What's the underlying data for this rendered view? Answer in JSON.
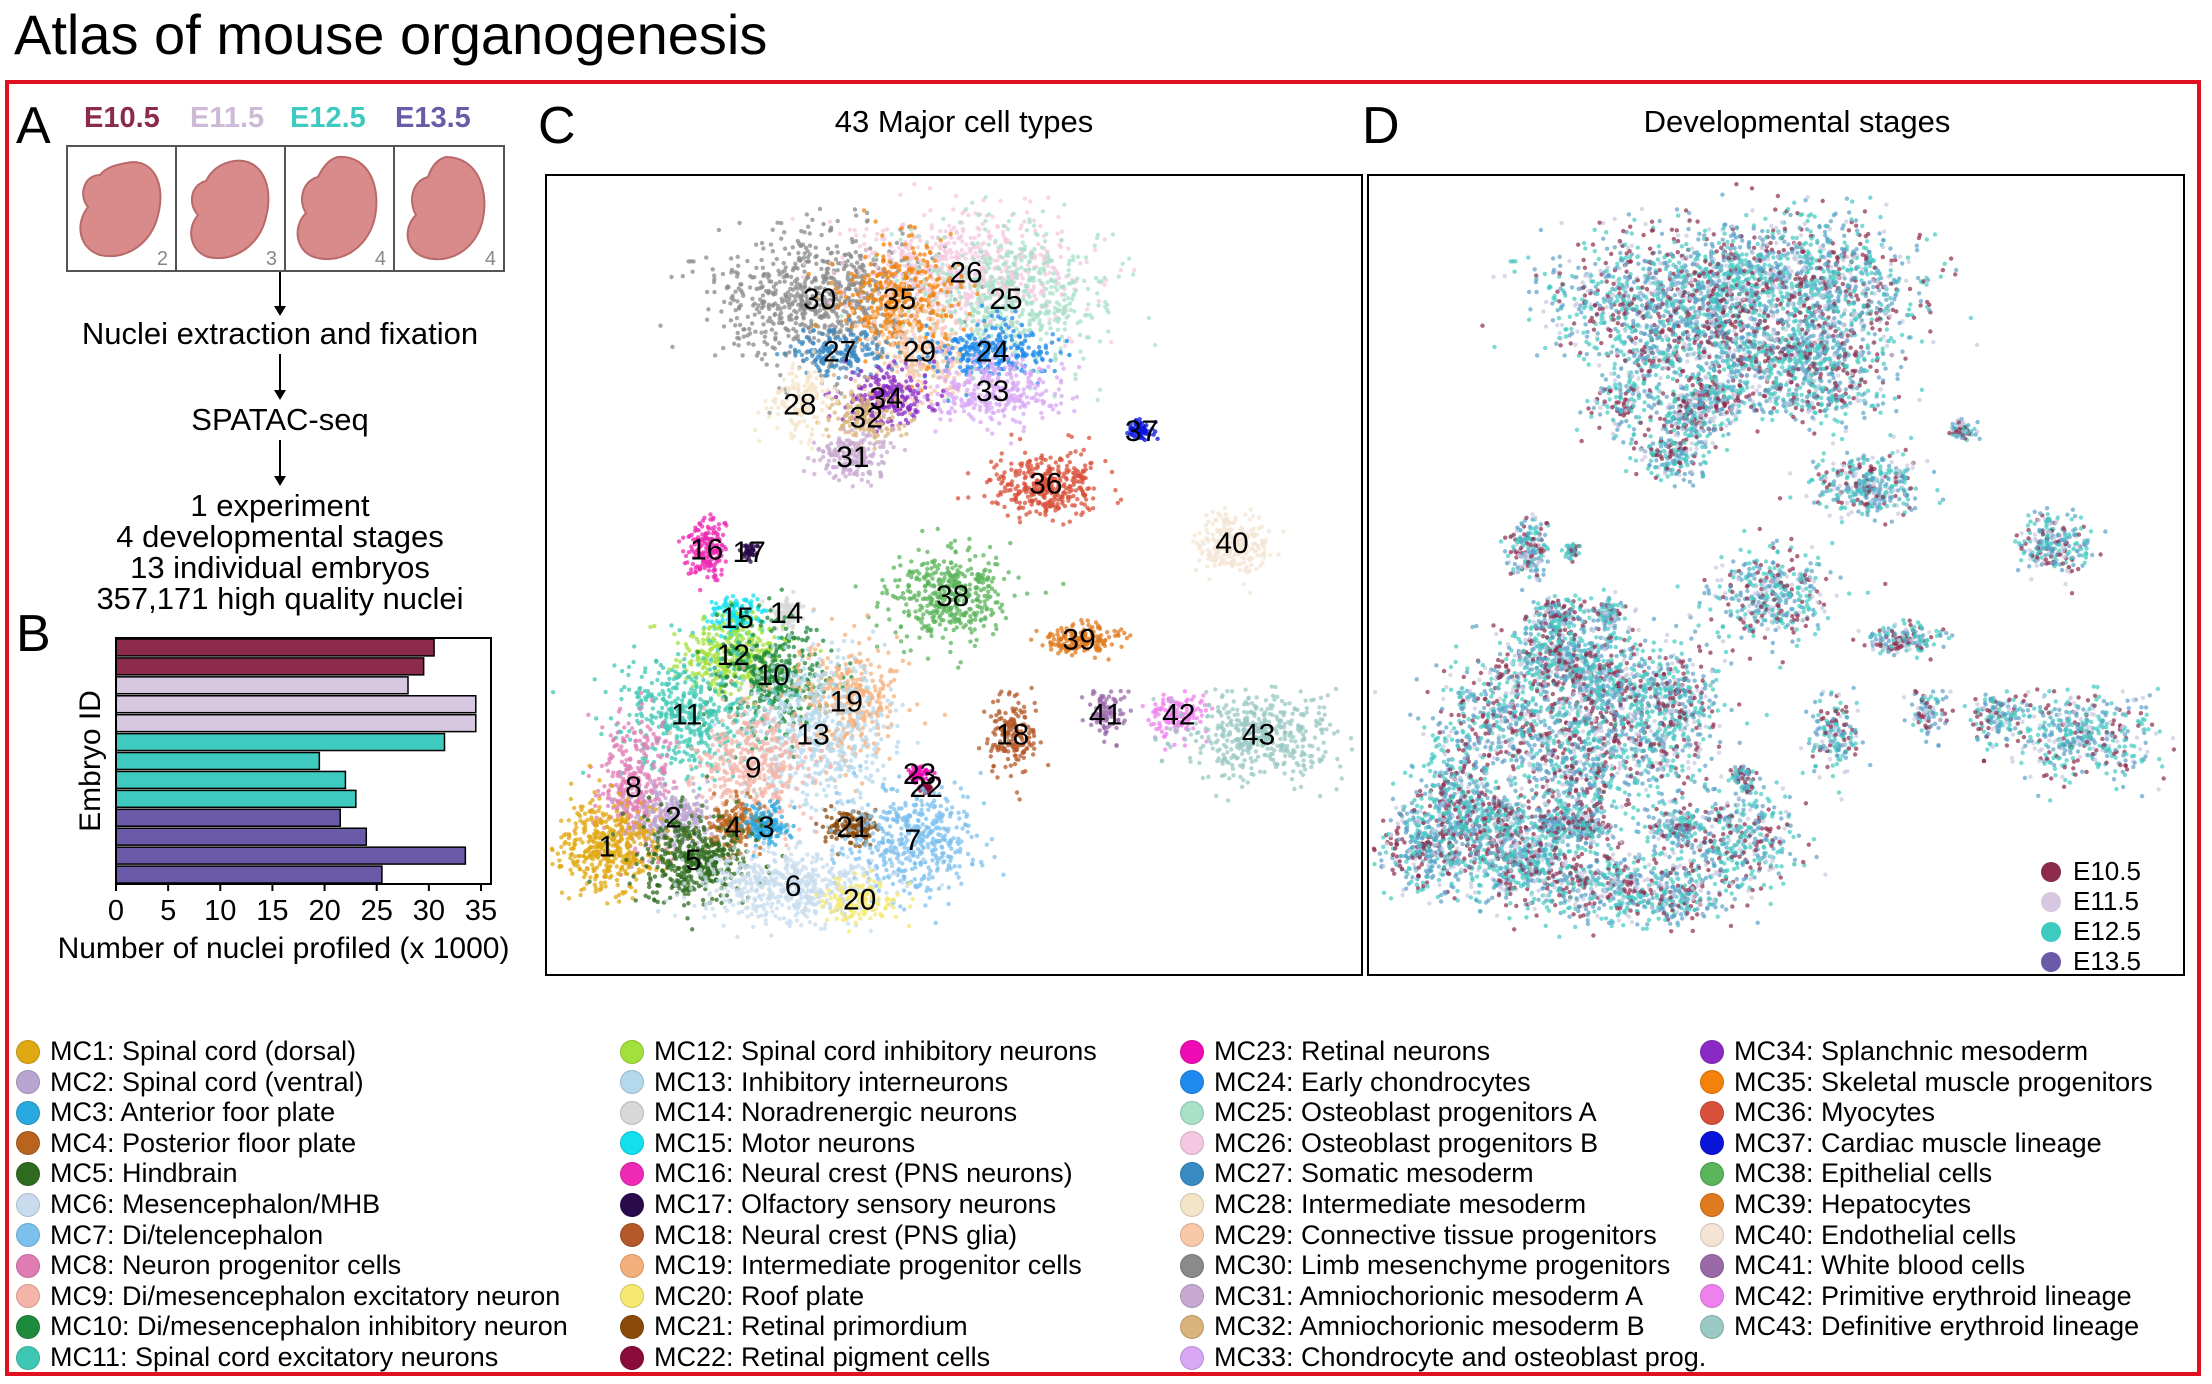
{
  "title": "Atlas of mouse organogenesis",
  "panels": {
    "A": "A",
    "B": "B",
    "C": "C",
    "D": "D"
  },
  "panel_a": {
    "stages": [
      {
        "label": "E10.5",
        "color": "#8b2a4a",
        "count": "2"
      },
      {
        "label": "E11.5",
        "color": "#cdbad6",
        "count": "3"
      },
      {
        "label": "E12.5",
        "color": "#3fcac0",
        "count": "4"
      },
      {
        "label": "E13.5",
        "color": "#6a5aa8",
        "count": "4"
      }
    ],
    "steps": [
      "Nuclei extraction and fixation",
      "SPATAC-seq"
    ],
    "summary": [
      "1 experiment",
      "4 developmental stages",
      "13 individual embryos",
      "357,171 high quality nuclei"
    ]
  },
  "chart_data": {
    "type": "bar",
    "orientation": "horizontal",
    "ylabel": "Embryo ID",
    "xlabel": "Number of nuclei profiled (x 1000)",
    "xlim": [
      0,
      35
    ],
    "xticks": [
      "0",
      "5",
      "10",
      "15",
      "20",
      "25",
      "30",
      "35"
    ],
    "series": [
      {
        "stage": "E10.5",
        "color": "#8b2a4a",
        "values": [
          30.5,
          29.5
        ]
      },
      {
        "stage": "E11.5",
        "color": "#d8c7e0",
        "values": [
          28,
          34.5,
          34.5
        ]
      },
      {
        "stage": "E12.5",
        "color": "#3fcac0",
        "values": [
          31.5,
          19.5,
          22,
          23
        ]
      },
      {
        "stage": "E13.5",
        "color": "#6a5aa8",
        "values": [
          21.5,
          24,
          33.5,
          25.5
        ]
      }
    ]
  },
  "panel_c": {
    "title": "43 Major cell types",
    "clusters": [
      "1",
      "2",
      "3",
      "4",
      "5",
      "6",
      "7",
      "8",
      "9",
      "10",
      "11",
      "12",
      "13",
      "14",
      "15",
      "16",
      "17",
      "18",
      "19",
      "20",
      "21",
      "22",
      "23",
      "24",
      "25",
      "26",
      "27",
      "28",
      "29",
      "30",
      "31",
      "32",
      "33",
      "34",
      "35",
      "36",
      "37",
      "38",
      "39",
      "40",
      "41",
      "42",
      "43"
    ]
  },
  "panel_d": {
    "title": "Developmental stages",
    "legend": [
      {
        "label": "E10.5",
        "color": "#8b2a4a"
      },
      {
        "label": "E11.5",
        "color": "#d8c7e0"
      },
      {
        "label": "E12.5",
        "color": "#3fcac0"
      },
      {
        "label": "E13.5",
        "color": "#6a5aa8"
      }
    ]
  },
  "cell_types": [
    {
      "label": "MC1: Spinal cord (dorsal)",
      "color": "#e0a812"
    },
    {
      "label": "MC2: Spinal cord (ventral)",
      "color": "#b9a6d0"
    },
    {
      "label": "MC3: Anterior foor plate",
      "color": "#2aa8e0"
    },
    {
      "label": "MC4: Posterior floor plate",
      "color": "#b8641e"
    },
    {
      "label": "MC5: Hindbrain",
      "color": "#2e6b1e"
    },
    {
      "label": "MC6: Mesencephalon/MHB",
      "color": "#c8dcee"
    },
    {
      "label": "MC7: Di/telencephalon",
      "color": "#7cc0ee"
    },
    {
      "label": "MC8: Neuron progenitor cells",
      "color": "#e07cb4"
    },
    {
      "label": "MC9: Di/mesencephalon excitatory neuron",
      "color": "#f4b4a8"
    },
    {
      "label": "MC10: Di/mesencephalon inhibitory neuron",
      "color": "#1e8a3c"
    },
    {
      "label": "MC11: Spinal cord excitatory neurons",
      "color": "#3ec8b4"
    },
    {
      "label": "MC12: Spinal cord inhibitory neurons",
      "color": "#a4e03c"
    },
    {
      "label": "MC13: Inhibitory interneurons",
      "color": "#b4d8ec"
    },
    {
      "label": "MC14: Noradrenergic neurons",
      "color": "#d8d8d8"
    },
    {
      "label": "MC15: Motor neurons",
      "color": "#12e0ee"
    },
    {
      "label": "MC16: Neural crest (PNS neurons)",
      "color": "#ee2ab4"
    },
    {
      "label": "MC17: Olfactory sensory neurons",
      "color": "#2a0a4a"
    },
    {
      "label": "MC18: Neural crest (PNS glia)",
      "color": "#b45a2a"
    },
    {
      "label": "MC19: Intermediate progenitor cells",
      "color": "#f4b07c"
    },
    {
      "label": "MC20: Roof plate",
      "color": "#f4e870"
    },
    {
      "label": "MC21: Retinal primordium",
      "color": "#8a4a0a"
    },
    {
      "label": "MC22: Retinal pigment cells",
      "color": "#8a0a3a"
    },
    {
      "label": "MC23: Retinal neurons",
      "color": "#ee0ab4"
    },
    {
      "label": "MC24: Early chondrocytes",
      "color": "#1e8aee"
    },
    {
      "label": "MC25: Osteoblast progenitors A",
      "color": "#a8e0c8"
    },
    {
      "label": "MC26: Osteoblast progenitors B",
      "color": "#f4c8e0"
    },
    {
      "label": "MC27: Somatic mesoderm",
      "color": "#3a8ac4"
    },
    {
      "label": "MC28: Intermediate mesoderm",
      "color": "#f4e4c8"
    },
    {
      "label": "MC29: Connective tissue progenitors",
      "color": "#f8c8a8"
    },
    {
      "label": "MC30: Limb mesenchyme progenitors",
      "color": "#8a8a8a"
    },
    {
      "label": "MC31: Amniochorionic mesoderm A",
      "color": "#c8a8d0"
    },
    {
      "label": "MC32: Amniochorionic mesoderm B",
      "color": "#d8b47c"
    },
    {
      "label": "MC33: Chondrocyte and osteoblast prog.",
      "color": "#d8a8f4"
    },
    {
      "label": "MC34: Splanchnic mesoderm",
      "color": "#8a2ac4"
    },
    {
      "label": "MC35: Skeletal muscle progenitors",
      "color": "#f4820a"
    },
    {
      "label": "MC36: Myocytes",
      "color": "#d8503a"
    },
    {
      "label": "MC37: Cardiac muscle lineage",
      "color": "#0a14d8"
    },
    {
      "label": "MC38: Epithelial cells",
      "color": "#5ab45a"
    },
    {
      "label": "MC39: Hepatocytes",
      "color": "#e07a1e"
    },
    {
      "label": "MC40: Endothelial cells",
      "color": "#f4e4d4"
    },
    {
      "label": "MC41: White blood cells",
      "color": "#9a6aa8"
    },
    {
      "label": "MC42: Primitive erythroid lineage",
      "color": "#ee82ee"
    },
    {
      "label": "MC43: Definitive erythroid lineage",
      "color": "#9ac8c4"
    }
  ]
}
